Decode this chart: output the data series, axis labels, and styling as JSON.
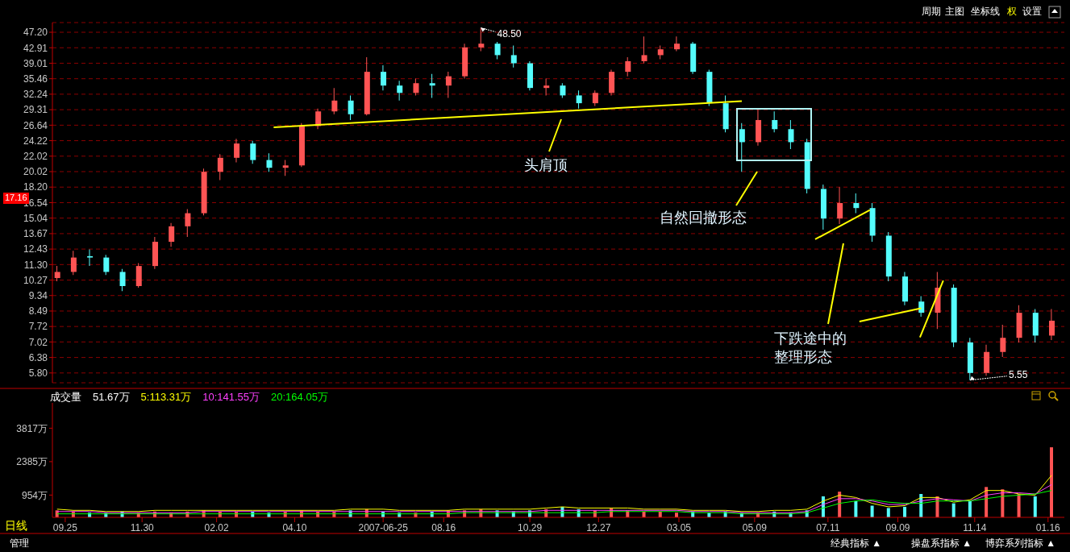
{
  "chart_data": [
    {
      "type": "candlestick",
      "x": [
        "2006-09-18",
        "2006-10-02",
        "2006-10-16",
        "2006-10-30",
        "2006-11-13",
        "2006-11-27",
        "2006-12-11",
        "2006-12-25",
        "2007-01-08",
        "2007-01-22",
        "2007-02-05",
        "2007-02-19",
        "2007-03-05",
        "2007-03-19",
        "2007-04-02",
        "2007-04-16",
        "2007-04-30",
        "2007-05-14",
        "2007-05-28",
        "2007-06-11",
        "2007-06-25",
        "2007-07-09",
        "2007-07-23",
        "2007-08-06",
        "2007-08-20",
        "2007-09-03",
        "2007-09-17",
        "2007-10-01",
        "2007-10-15",
        "2007-10-29",
        "2007-11-12",
        "2007-11-26",
        "2007-12-10",
        "2007-12-24",
        "2008-01-07",
        "2008-01-21",
        "2008-02-04",
        "2008-02-18",
        "2008-03-03",
        "2008-03-17",
        "2008-03-31",
        "2008-04-14",
        "2008-04-28",
        "2008-05-12",
        "2008-05-26",
        "2008-06-09",
        "2008-06-23",
        "2008-07-07",
        "2008-07-21",
        "2008-08-04",
        "2008-08-18",
        "2008-09-01",
        "2008-09-15",
        "2008-09-29",
        "2008-10-13",
        "2008-10-27",
        "2008-11-10",
        "2008-11-24",
        "2008-12-08",
        "2008-12-22",
        "2009-01-05",
        "2009-01-19"
      ],
      "ohlc": [
        [
          10.4,
          11.2,
          10.2,
          10.8
        ],
        [
          10.8,
          12.3,
          10.6,
          11.8
        ],
        [
          11.9,
          12.4,
          11.2,
          11.8
        ],
        [
          11.8,
          12.0,
          10.6,
          10.8
        ],
        [
          10.8,
          11.0,
          9.6,
          9.9
        ],
        [
          9.9,
          11.4,
          9.8,
          11.2
        ],
        [
          11.2,
          13.4,
          11.0,
          13.0
        ],
        [
          13.0,
          14.6,
          12.6,
          14.3
        ],
        [
          14.3,
          15.9,
          13.4,
          15.5
        ],
        [
          15.5,
          20.4,
          15.3,
          20.0
        ],
        [
          20.0,
          22.3,
          19.0,
          21.8
        ],
        [
          21.8,
          24.5,
          21.2,
          23.8
        ],
        [
          23.8,
          24.2,
          21.0,
          21.5
        ],
        [
          21.5,
          22.4,
          20.0,
          20.5
        ],
        [
          20.5,
          21.5,
          19.5,
          20.8
        ],
        [
          20.8,
          27.0,
          20.6,
          26.5
        ],
        [
          26.5,
          29.5,
          26.0,
          29.0
        ],
        [
          29.0,
          33.5,
          28.5,
          31.0
        ],
        [
          31.0,
          32.0,
          27.5,
          28.5
        ],
        [
          28.5,
          40.5,
          28.3,
          37.0
        ],
        [
          37.0,
          38.5,
          33.0,
          34.0
        ],
        [
          34.0,
          35.0,
          31.0,
          32.5
        ],
        [
          32.5,
          35.5,
          32.0,
          34.5
        ],
        [
          34.5,
          36.5,
          31.5,
          34.0
        ],
        [
          34.0,
          37.0,
          31.5,
          36.0
        ],
        [
          36.0,
          44.0,
          35.5,
          43.0
        ],
        [
          43.0,
          48.5,
          42.0,
          44.0
        ],
        [
          44.0,
          44.5,
          40.0,
          41.0
        ],
        [
          41.0,
          43.5,
          38.0,
          39.0
        ],
        [
          39.0,
          39.5,
          33.0,
          33.5
        ],
        [
          33.5,
          35.5,
          32.0,
          34.0
        ],
        [
          34.0,
          34.5,
          31.5,
          32.0
        ],
        [
          32.0,
          33.0,
          29.5,
          30.5
        ],
        [
          30.5,
          33.0,
          30.0,
          32.5
        ],
        [
          32.5,
          37.5,
          32.0,
          37.0
        ],
        [
          37.0,
          40.5,
          36.0,
          39.5
        ],
        [
          39.5,
          46.0,
          39.0,
          41.0
        ],
        [
          41.0,
          43.5,
          40.0,
          42.5
        ],
        [
          42.5,
          46.0,
          42.0,
          44.0
        ],
        [
          44.0,
          44.5,
          36.5,
          37.0
        ],
        [
          37.0,
          37.5,
          30.0,
          30.5
        ],
        [
          30.5,
          32.0,
          25.5,
          26.0
        ],
        [
          26.0,
          27.0,
          20.0,
          24.0
        ],
        [
          24.0,
          29.5,
          23.5,
          27.5
        ],
        [
          27.5,
          29.0,
          25.5,
          26.0
        ],
        [
          26.0,
          27.5,
          23.0,
          24.0
        ],
        [
          24.0,
          24.5,
          17.5,
          18.0
        ],
        [
          18.0,
          18.5,
          14.0,
          15.0
        ],
        [
          15.0,
          18.2,
          14.5,
          16.5
        ],
        [
          16.5,
          17.5,
          15.5,
          16.0
        ],
        [
          16.0,
          16.5,
          13.0,
          13.5
        ],
        [
          13.5,
          13.8,
          10.2,
          10.5
        ],
        [
          10.5,
          10.8,
          8.8,
          9.0
        ],
        [
          9.0,
          9.3,
          8.2,
          8.4
        ],
        [
          8.4,
          10.8,
          7.6,
          9.8
        ],
        [
          9.8,
          10.0,
          6.8,
          7.0
        ],
        [
          7.0,
          7.2,
          5.55,
          5.8
        ],
        [
          5.8,
          6.9,
          5.7,
          6.6
        ],
        [
          6.6,
          7.8,
          6.4,
          7.2
        ],
        [
          7.2,
          8.8,
          7.0,
          8.4
        ],
        [
          8.4,
          8.6,
          7.0,
          7.3
        ],
        [
          7.3,
          8.6,
          7.1,
          8.0
        ]
      ],
      "colors": [
        "#ff5454",
        "#ff5454",
        "#54fcfc",
        "#54fcfc",
        "#54fcfc",
        "#ff5454",
        "#ff5454",
        "#ff5454",
        "#ff5454",
        "#ff5454",
        "#ff5454",
        "#ff5454",
        "#54fcfc",
        "#54fcfc",
        "#ff5454",
        "#ff5454",
        "#ff5454",
        "#ff5454",
        "#54fcfc",
        "#ff5454",
        "#54fcfc",
        "#54fcfc",
        "#ff5454",
        "#54fcfc",
        "#ff5454",
        "#ff5454",
        "#ff5454",
        "#54fcfc",
        "#54fcfc",
        "#54fcfc",
        "#ff5454",
        "#54fcfc",
        "#54fcfc",
        "#ff5454",
        "#ff5454",
        "#ff5454",
        "#ff5454",
        "#ff5454",
        "#ff5454",
        "#54fcfc",
        "#54fcfc",
        "#54fcfc",
        "#54fcfc",
        "#ff5454",
        "#54fcfc",
        "#54fcfc",
        "#54fcfc",
        "#54fcfc",
        "#ff5454",
        "#54fcfc",
        "#54fcfc",
        "#54fcfc",
        "#54fcfc",
        "#54fcfc",
        "#ff5454",
        "#54fcfc",
        "#54fcfc",
        "#ff5454",
        "#ff5454",
        "#ff5454",
        "#54fcfc",
        "#ff5454"
      ],
      "series": [
        {
          "type": "line",
          "color": "#ffff00",
          "x": [
            "2007-03-23",
            "2008-04-28"
          ],
          "values": [
            26.3,
            30.9
          ]
        },
        {
          "type": "line",
          "color": "#ffff00",
          "x": [
            "2008-06-30",
            "2008-08-16"
          ],
          "values": [
            13.2,
            15.8
          ]
        },
        {
          "type": "line",
          "color": "#ffff00",
          "x": [
            "2008-08-07",
            "2008-09-29"
          ],
          "values": [
            7.96,
            8.64
          ]
        },
        {
          "type": "line",
          "color": "#ffff00",
          "x": [
            "2008-09-28",
            "2008-10-18"
          ],
          "values": [
            7.22,
            10.24
          ]
        }
      ],
      "xlim": [
        "2006-09-14",
        "2009-01-30"
      ],
      "ylim": [
        5.46,
        50.1
      ],
      "yticks": [
        {
          "value": 47.2,
          "label": "47.20"
        },
        42.91,
        39.01,
        35.46,
        32.24,
        29.31,
        26.64,
        24.22,
        22.02,
        20.02,
        {
          "value": 18.2,
          "label": "18.20"
        },
        16.54,
        15.04,
        13.67,
        12.43,
        {
          "value": 11.3,
          "label": "11.30"
        },
        10.27,
        9.34,
        8.49,
        7.72,
        7.02,
        6.38,
        {
          "value": 5.8,
          "label": "5.80"
        }
      ],
      "log": true,
      "grid": "y",
      "tick_labels": "y",
      "annotations": [
        "头肩顶",
        "自然回撤形态",
        "下跌途中的整理形态",
        {
          "text": "48.50",
          "x": "2007-09-17",
          "y": 48.5
        },
        {
          "text": "5.55",
          "x": "2008-11-10",
          "y": 5.55
        },
        "17.16",
        "周期",
        "主图",
        "坐标线",
        "权",
        "设置",
        "日线",
        "管理",
        "经典指标 ▲",
        "操盘系指标 ▲",
        "博弈系列指标 ▲"
      ]
    },
    {
      "type": "bar",
      "title": "成交量",
      "subtitle": "51.67万",
      "x": [
        "2006-09-18",
        "2006-10-02",
        "2006-10-16",
        "2006-10-30",
        "2006-11-13",
        "2006-11-27",
        "2006-12-11",
        "2006-12-25",
        "2007-01-08",
        "2007-01-22",
        "2007-02-05",
        "2007-02-19",
        "2007-03-05",
        "2007-03-19",
        "2007-04-02",
        "2007-04-16",
        "2007-04-30",
        "2007-05-14",
        "2007-05-28",
        "2007-06-11",
        "2007-06-25",
        "2007-07-09",
        "2007-07-23",
        "2007-08-06",
        "2007-08-20",
        "2007-09-03",
        "2007-09-17",
        "2007-10-01",
        "2007-10-15",
        "2007-10-29",
        "2007-11-12",
        "2007-11-26",
        "2007-12-10",
        "2007-12-24",
        "2008-01-07",
        "2008-01-21",
        "2008-02-04",
        "2008-02-18",
        "2008-03-03",
        "2008-03-17",
        "2008-03-31",
        "2008-04-14",
        "2008-04-28",
        "2008-05-12",
        "2008-05-26",
        "2008-06-09",
        "2008-06-23",
        "2008-07-07",
        "2008-07-21",
        "2008-08-04",
        "2008-08-18",
        "2008-09-01",
        "2008-09-15",
        "2008-09-29",
        "2008-10-13",
        "2008-10-27",
        "2008-11-10",
        "2008-11-24",
        "2008-12-08",
        "2008-12-22",
        "2009-01-05",
        "2009-01-19"
      ],
      "series": [
        {
          "values": [
            300,
            250,
            200,
            200,
            250,
            200,
            250,
            200,
            250,
            300,
            250,
            250,
            250,
            200,
            250,
            300,
            250,
            250,
            300,
            350,
            250,
            200,
            200,
            250,
            300,
            300,
            350,
            300,
            250,
            300,
            350,
            450,
            350,
            300,
            400,
            300,
            250,
            250,
            200,
            250,
            200,
            250,
            200,
            200,
            250,
            200,
            300,
            900,
            1100,
            700,
            500,
            400,
            450,
            1000,
            900,
            600,
            700,
            1300,
            1200,
            1000,
            900,
            3000
          ],
          "colors": [
            "#ff5454",
            "#ff5454",
            "#54fcfc",
            "#54fcfc",
            "#54fcfc",
            "#ff5454",
            "#ff5454",
            "#ff5454",
            "#ff5454",
            "#ff5454",
            "#ff5454",
            "#ff5454",
            "#54fcfc",
            "#54fcfc",
            "#ff5454",
            "#ff5454",
            "#ff5454",
            "#ff5454",
            "#54fcfc",
            "#ff5454",
            "#54fcfc",
            "#54fcfc",
            "#ff5454",
            "#54fcfc",
            "#ff5454",
            "#ff5454",
            "#ff5454",
            "#54fcfc",
            "#54fcfc",
            "#54fcfc",
            "#ff5454",
            "#54fcfc",
            "#54fcfc",
            "#ff5454",
            "#ff5454",
            "#ff5454",
            "#ff5454",
            "#ff5454",
            "#ff5454",
            "#54fcfc",
            "#54fcfc",
            "#54fcfc",
            "#54fcfc",
            "#ff5454",
            "#54fcfc",
            "#54fcfc",
            "#54fcfc",
            "#54fcfc",
            "#ff5454",
            "#54fcfc",
            "#54fcfc",
            "#54fcfc",
            "#54fcfc",
            "#54fcfc",
            "#ff5454",
            "#54fcfc",
            "#54fcfc",
            "#ff5454",
            "#ff5454",
            "#ff5454",
            "#54fcfc",
            "#ff5454"
          ]
        },
        {
          "type": "line",
          "name": "5:113.31万",
          "color": "#ffff00",
          "values": [
            350,
            300,
            300,
            250,
            250,
            250,
            300,
            300,
            300,
            300,
            300,
            300,
            300,
            300,
            300,
            300,
            300,
            300,
            350,
            350,
            350,
            300,
            300,
            300,
            300,
            350,
            350,
            350,
            350,
            350,
            400,
            450,
            400,
            400,
            400,
            400,
            350,
            350,
            350,
            300,
            300,
            300,
            250,
            250,
            300,
            300,
            350,
            700,
            950,
            850,
            600,
            450,
            500,
            850,
            850,
            650,
            750,
            1150,
            1150,
            1000,
            950,
            1800
          ]
        },
        {
          "type": "line",
          "name": "10:141.55万",
          "color": "#ff40ff",
          "values": [
            250,
            250,
            250,
            200,
            200,
            200,
            200,
            200,
            200,
            250,
            250,
            250,
            250,
            250,
            250,
            250,
            250,
            250,
            250,
            250,
            250,
            250,
            250,
            250,
            250,
            250,
            250,
            250,
            250,
            250,
            300,
            300,
            300,
            300,
            300,
            300,
            300,
            300,
            300,
            250,
            250,
            250,
            200,
            200,
            200,
            200,
            250,
            550,
            800,
            800,
            700,
            550,
            550,
            700,
            800,
            750,
            700,
            950,
            1050,
            1050,
            1000,
            1400
          ]
        },
        {
          "type": "line",
          "name": "20:164.05万",
          "color": "#00ff00",
          "values": [
            150,
            150,
            150,
            150,
            150,
            150,
            150,
            150,
            150,
            150,
            150,
            150,
            150,
            150,
            150,
            150,
            150,
            150,
            150,
            150,
            150,
            150,
            150,
            150,
            150,
            200,
            200,
            200,
            200,
            200,
            200,
            200,
            200,
            200,
            250,
            250,
            250,
            250,
            250,
            200,
            200,
            200,
            150,
            150,
            150,
            150,
            200,
            400,
            600,
            700,
            750,
            650,
            600,
            600,
            700,
            700,
            700,
            800,
            900,
            950,
            1000,
            1150
          ]
        }
      ],
      "xlim": [
        "2006-09-14",
        "2009-01-30"
      ],
      "xticks": [
        {
          "value": "2006-09-25",
          "label": "09.25"
        },
        {
          "value": "2006-11-30",
          "label": "11.30"
        },
        {
          "value": "2007-02-02",
          "label": "02.02"
        },
        {
          "value": "2007-04-10",
          "label": "04.10"
        },
        {
          "value": "2007-06-25",
          "label": "2007-06-25"
        },
        {
          "value": "2007-08-16",
          "label": "08.16"
        },
        {
          "value": "2007-10-29",
          "label": "10.29"
        },
        {
          "value": "2007-12-27",
          "label": "12.27"
        },
        {
          "value": "2008-03-05",
          "label": "03.05"
        },
        {
          "value": "2008-05-09",
          "label": "05.09"
        },
        {
          "value": "2008-07-11",
          "label": "07.11"
        },
        {
          "value": "2008-09-09",
          "label": "09.09"
        },
        {
          "value": "2008-11-14",
          "label": "11.14"
        },
        {
          "value": "2009-01-16",
          "label": "01.16"
        }
      ],
      "ylim": [
        0,
        4900
      ],
      "yticks": [
        {
          "value": 954,
          "label": "954万"
        },
        {
          "value": 2385,
          "label": "2385万"
        },
        {
          "value": 3817,
          "label": "3817万"
        }
      ],
      "legend": "top left"
    }
  ]
}
